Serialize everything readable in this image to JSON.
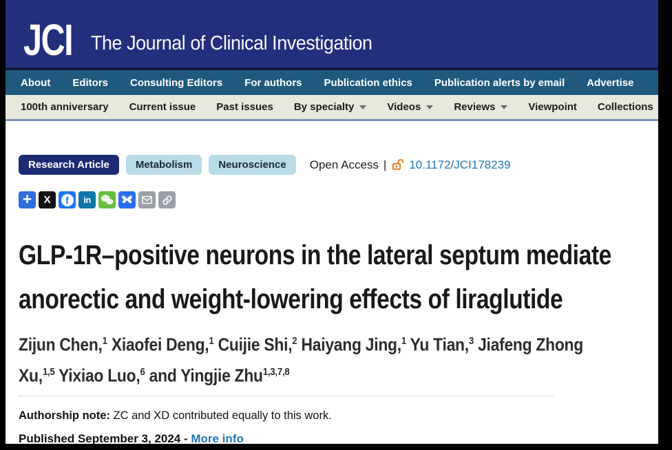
{
  "masthead": {
    "logo": "JCI",
    "title": "The Journal of Clinical Investigation",
    "bg_color": "#232e7c"
  },
  "nav_primary": {
    "bg_color": "#1f5a7e",
    "items": [
      "About",
      "Editors",
      "Consulting Editors",
      "For authors",
      "Publication ethics",
      "Publication alerts by email",
      "Advertise"
    ]
  },
  "nav_secondary": {
    "bg_color": "#e7e9dc",
    "items": [
      {
        "label": "100th anniversary",
        "dropdown": false
      },
      {
        "label": "Current issue",
        "dropdown": false
      },
      {
        "label": "Past issues",
        "dropdown": false
      },
      {
        "label": "By specialty",
        "dropdown": true
      },
      {
        "label": "Videos",
        "dropdown": true
      },
      {
        "label": "Reviews",
        "dropdown": true
      },
      {
        "label": "Viewpoint",
        "dropdown": false
      },
      {
        "label": "Collections",
        "dropdown": false
      }
    ]
  },
  "article": {
    "type_badge": "Research Article",
    "category_badges": [
      "Metabolism",
      "Neuroscience"
    ],
    "open_access_label": "Open Access",
    "separator": "|",
    "doi": "10.1172/JCI178239",
    "title_lines": [
      "GLP-1R–positive neurons in the lateral septum mediate",
      "anorectic and weight-lowering effects of liraglutide"
    ],
    "author_lines": [
      [
        {
          "t": "Zijun Chen,",
          "s": "1"
        },
        {
          "t": " Xiaofei Deng,",
          "s": "1"
        },
        {
          "t": " Cuijie Shi,",
          "s": "2"
        },
        {
          "t": " Haiyang Jing,",
          "s": "1"
        },
        {
          "t": " Yu Tian,",
          "s": "3"
        },
        {
          "t": " Jiafeng Zhong",
          "s": ""
        }
      ],
      [
        {
          "t": "Xu,",
          "s": "1,5"
        },
        {
          "t": " Yixiao Luo,",
          "s": "6"
        },
        {
          "t": " and Yingjie Zhu",
          "s": "1,3,7,8"
        }
      ]
    ],
    "authorship_label": "Authorship note:",
    "authorship_text": " ZC and XD contributed equally to this work.",
    "published_text": "Published September 3, 2024 - ",
    "more_info_label": "More info"
  },
  "share": {
    "icons": [
      {
        "name": "share-plus",
        "bg": "#2e6edf"
      },
      {
        "name": "x-twitter",
        "bg": "#111111"
      },
      {
        "name": "facebook",
        "bg": "#1877f2"
      },
      {
        "name": "linkedin",
        "bg": "#0e76a8"
      },
      {
        "name": "wechat",
        "bg": "#67bf3f"
      },
      {
        "name": "bluesky",
        "bg": "#2b6ff0"
      },
      {
        "name": "email",
        "bg": "#9aa0a6"
      },
      {
        "name": "copy-link",
        "bg": "#9aa0a6"
      }
    ]
  },
  "colors": {
    "header_navy": "#232e7c",
    "nav_teal": "#1f5a7e",
    "nav_pale": "#e7e9dc",
    "nav_underline": "#7e92b8",
    "badge_navy": "#1d2b74",
    "badge_light_blue": "#b8dbe6",
    "link_blue": "#2278b5",
    "open_access_orange": "#ee8123"
  }
}
